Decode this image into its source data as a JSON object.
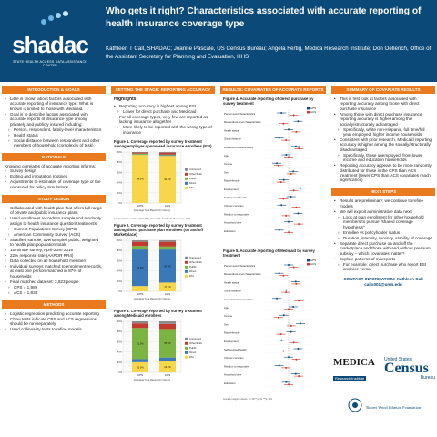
{
  "header": {
    "logo": "shadac",
    "logo_subtitle": "STATE HEALTH ACCESS DATA ASSISTANCE CENTER",
    "title": "Who gets it right? Characteristics associated with accurate reporting of health insurance coverage type",
    "authors": "Kathleen T Call, SHADAC; Joanne Pascale, US Census Bureau; Angela Fertig, Medica Research Institute; Don Oellerich, Office of the Assistant Secretary for Planning and Evaluation, HHS"
  },
  "col1": {
    "intro_heading": "INTRODUCTION & GOALS",
    "intro_items": [
      "Little is known about factors associated with accurate reporting of insurance type: What is known is limited to those with Medicaid.",
      "Goal is to describe factors associated with accurate reports of insurance type among privately and publicly insured including:"
    ],
    "intro_sub": [
      "Person, respondent, family-level characteristics",
      "Health status",
      "Social distance between respondent and other members of household (complexity of task)"
    ],
    "rationale_heading": "RATIONALE",
    "rationale_lead": "Knowing correlates of accurate reporting informs:",
    "rationale_items": [
      "Survey design",
      "Editing and imputation routines",
      "Adjustments to estimates of coverage type or the uninsured for policy simulations"
    ],
    "design_heading": "STUDY DESIGN",
    "design_items": [
      "Collaborated with health plan that offers full range of private and public insurance plans",
      "Used enrollment records to sample and randomly assign to health insurance question treatments:"
    ],
    "design_sub": [
      "Current Populations Survey (CPS)",
      "American Community Survey (ACS)"
    ],
    "design_items2": [
      "Stratified sample; oversampled public; weighted to health plan population totals",
      "15 minute survey, April-June 2015",
      "22% response rate (AAPOR RR4)",
      "Data collected on all household members",
      "Individual surveys matched to enrollment records, at least one person matched in 87% of households",
      "Final matched data set: 3,823 people"
    ],
    "design_sub2": [
      "CPS = 1,989",
      "ACS = 1,834"
    ],
    "methods_heading": "METHODS",
    "methods_items": [
      "Logistic regression predicting accurate reporting",
      "Chow tests indicate CPS and ACS regressions should be run separately",
      "Used collinearity tests to refine models"
    ]
  },
  "col2": {
    "heading": "SETTING THE STAGE: REPORTING ACCURACY",
    "highlights": "Highlights",
    "items": [
      "Reporting accuracy is highest among ESI"
    ],
    "sub1": [
      "Lower for direct purchase and Medicaid"
    ],
    "items2": [
      "For all coverage types, very few are reported as lacking insurance altogether"
    ],
    "sub2": [
      "More likely to be reported with the wrong type of insurance"
    ],
    "fig1_title": "Figure 1. Coverage reported by survey treatment among employer-sponsored insurance enrollees (ESI)",
    "fig2_title": "Figure 2. Coverage reported by survey treatment among direct purchase plan enrollees (on and off Marketplace)",
    "fig3_title": "Figure 3. Coverage reported by survey treatment among Medicaid enrollees",
    "note": "Sample: Medica enrollees (N=3,823). Source: Medica Health Plan survey, 2015.",
    "legend_label": "Coverage Type Reported in Survey"
  },
  "col3": {
    "heading": "RESULTS: COVARIATES OF ACCURATE REPORTS",
    "fig4_title": "Figure 4. Accurate reporting of direct purchase by survey treatment",
    "fig5_title": "Figure 5. Accurate reporting of Medicaid by survey treatment",
    "legend": [
      "CPS",
      "ACS"
    ],
    "axis_note": "Average marginal effects: *p<.05  **p<.01  ***p<.001",
    "rows": [
      "Person-level characteristics",
      "Respondent-level characteristics",
      "Health status",
      "Social distance",
      "Household characteristics",
      "Age",
      "Income",
      "Sex",
      "Race/ethnicity",
      "Employment",
      "Self-reported health",
      "Chronic condition",
      "Relation to respondent",
      "Household size",
      "Education"
    ]
  },
  "col4": {
    "summary_heading": "SUMMARY OF COVARIATE RESULTS",
    "summary_items": [
      "This is first look at factors associated with reporting accuracy among those with direct purchase insurance",
      "Among those with direct purchase insurance reporting accuracy is higher among the socially/structurally advantaged"
    ],
    "summary_sub": [
      "Specifically, white non-Hispanic, full time/full year employed, higher income households"
    ],
    "summary_items2": [
      "Consistent with prior research, Medicaid reporting accuracy is higher among the socially/structurally disadvantaged"
    ],
    "summary_sub2": [
      "Specifically, those unemployed, from lower income and education households"
    ],
    "summary_items3": [
      "Reporting accuracy appears to be more randomly distributed for those in the CPS than ACS treatment (fewer CPS than ACS covariates reach significance)"
    ],
    "next_heading": "NEXT STEPS",
    "next_items": [
      "Results are preliminary; we continue to refine models",
      "We will exploit administrative data next:"
    ],
    "next_sub": [
      "Look at plan enrollment for other household members to pursue \"shared coverage hypothesis\"",
      "Enrollee vs policyholder status",
      "Duration, intensity, recency, stability of coverage"
    ],
    "next_items2": [
      "Separate direct purchase on and off the marketplace and those with and without premium subsidy – which covariates matter?",
      "Explore patterns of misreports"
    ],
    "next_sub2": [
      "For example: direct purchase who report ESI and vice versa"
    ],
    "contact_label": "CONTACT INFORMATION: Kathleen Call",
    "contact_email": "callx001@umn.edu",
    "logo1": "MEDICA",
    "logo1_sub": "Research Institute",
    "logo2": "United States",
    "logo2_main": "Census",
    "logo2_sub": "Bureau",
    "logo3": "Robert Wood Johnson Foundation"
  },
  "chart_data": [
    {
      "type": "bar",
      "title": "Figure 1. Coverage reported by survey treatment among employer-sponsored insurance enrollees (ESI)",
      "categories": [
        "CPS",
        "ACS"
      ],
      "series": [
        {
          "name": "Uninsured",
          "values": [
            1.0,
            1.2
          ]
        },
        {
          "name": "Other/Multi",
          "values": [
            2.0,
            3.5
          ]
        },
        {
          "name": "Public",
          "values": [
            1.9,
            1.2
          ]
        },
        {
          "name": "Direct",
          "values": [
            0.6,
            1.5
          ]
        },
        {
          "name": "ESI",
          "values": [
            94.5,
            92.6
          ]
        }
      ],
      "ylim": [
        0,
        100
      ]
    },
    {
      "type": "bar",
      "title": "Figure 2. Coverage reported by survey treatment among direct purchase plan enrollees (on and off Marketplace)",
      "categories": [
        "CPS",
        "ACS"
      ],
      "series": [
        {
          "name": "Uninsured",
          "values": [
            3,
            3
          ]
        },
        {
          "name": "Other/Multi",
          "values": [
            8,
            9
          ]
        },
        {
          "name": "Public",
          "values": [
            7,
            6
          ]
        },
        {
          "name": "Direct",
          "values": [
            71.6,
            64.9
          ]
        },
        {
          "name": "ESI",
          "values": [
            10.4,
            17.1
          ]
        }
      ],
      "ylim": [
        0,
        100
      ]
    },
    {
      "type": "bar",
      "title": "Figure 3. Coverage reported by survey treatment among Medicaid enrollees",
      "categories": [
        "CPS",
        "ACS"
      ],
      "series": [
        {
          "name": "Uninsured",
          "values": [
            4,
            5
          ]
        },
        {
          "name": "Other/Multi",
          "values": [
            9,
            10
          ]
        },
        {
          "name": "Public",
          "values": [
            61.0,
            55.8
          ]
        },
        {
          "name": "Direct",
          "values": [
            6,
            7
          ]
        },
        {
          "name": "ESI",
          "values": [
            20,
            22.2
          ]
        }
      ],
      "ylim": [
        0,
        100
      ]
    }
  ],
  "colors": {
    "header": "#0b4a78",
    "section": "#e97a1d",
    "esi": "#f7d64a",
    "direct": "#3a78b8",
    "public": "#7cb443",
    "other": "#c33b2f",
    "uninsured": "#8a8a8a",
    "cps": "#0b4a78",
    "acs": "#c33b2f"
  }
}
